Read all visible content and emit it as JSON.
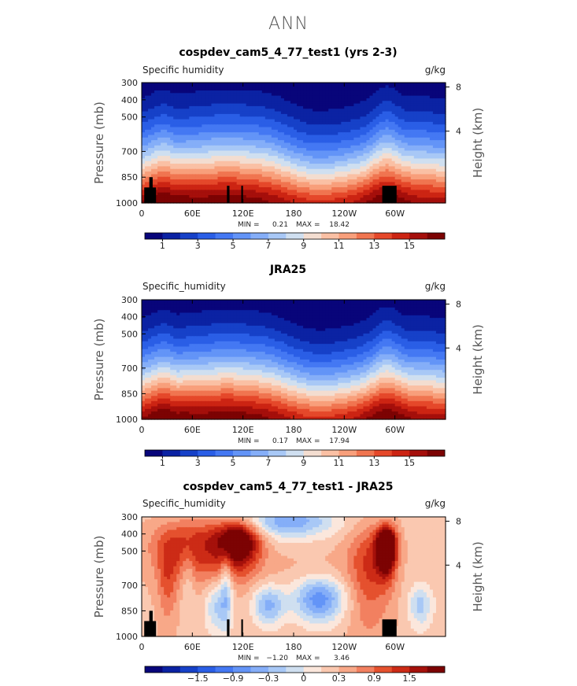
{
  "super_title": "ANN",
  "colors": {
    "abs_scale": [
      "#08057a",
      "#0b22a3",
      "#1641c8",
      "#2a5ee6",
      "#4478f3",
      "#6394f7",
      "#85aef8",
      "#a8c8f6",
      "#cfdff0",
      "#f3ddd0",
      "#fac0a4",
      "#f89f7b",
      "#f07550",
      "#e5482a",
      "#cc2413",
      "#a50f0b",
      "#7c0303"
    ],
    "diff_scale": [
      "#08057a",
      "#0b22a3",
      "#1641c8",
      "#2a5ee6",
      "#4478f3",
      "#6394f7",
      "#85aef8",
      "#a8c8f6",
      "#cfdff0",
      "#fbe7dc",
      "#fac8b0",
      "#f8a888",
      "#f28060",
      "#e5512e",
      "#cc2b16",
      "#a5110b",
      "#7c0303"
    ],
    "topography": "#000000"
  },
  "chart_data": [
    {
      "type": "heatmap",
      "title": "cospdev_cam5_4_77_test1 (yrs 2-3)",
      "variable_label": "Specific humidity",
      "units": "g/kg",
      "ylabel": "Pressure (mb)",
      "y2label": "Height (km)",
      "x_ticks": [
        "0",
        "60E",
        "120E",
        "180",
        "120W",
        "60W"
      ],
      "y_ticks": [
        "300",
        "400",
        "500",
        "700",
        "850",
        "1000"
      ],
      "y2_ticks": [
        "8",
        "4"
      ],
      "stats": {
        "min_label": "MIN =",
        "min": "0.21",
        "max_label": "MAX =",
        "max": "18.42"
      },
      "colorbar_labels": [
        "1",
        "3",
        "5",
        "7",
        "9",
        "11",
        "13",
        "15"
      ],
      "field": "abs_model",
      "topography": true
    },
    {
      "type": "heatmap",
      "title": "JRA25",
      "variable_label": "Specific_humidity",
      "units": "g/kg",
      "ylabel": "Pressure (mb)",
      "y2label": "Height (km)",
      "x_ticks": [
        "0",
        "60E",
        "120E",
        "180",
        "120W",
        "60W"
      ],
      "y_ticks": [
        "300",
        "400",
        "500",
        "700",
        "850",
        "1000"
      ],
      "y2_ticks": [
        "8",
        "4"
      ],
      "stats": {
        "min_label": "MIN =",
        "min": "0.17",
        "max_label": "MAX =",
        "max": "17.94"
      },
      "colorbar_labels": [
        "1",
        "3",
        "5",
        "7",
        "9",
        "11",
        "13",
        "15"
      ],
      "field": "abs_obs",
      "topography": false
    },
    {
      "type": "heatmap",
      "title": "cospdev_cam5_4_77_test1 - JRA25",
      "variable_label": "Specific_humidity",
      "units": "g/kg",
      "ylabel": "Pressure (mb)",
      "y2label": "Height (km)",
      "x_ticks": [
        "0",
        "60E",
        "120E",
        "180",
        "120W",
        "60W"
      ],
      "y_ticks": [
        "300",
        "400",
        "500",
        "700",
        "850",
        "1000"
      ],
      "y2_ticks": [
        "8",
        "4"
      ],
      "stats": {
        "min_label": "MIN =",
        "min": "−1.20",
        "max_label": "MAX =",
        "max": "3.46"
      },
      "colorbar_labels": [
        "−1.5",
        "−0.9",
        "−0.3",
        "0",
        "0.3",
        "0.9",
        "1.5"
      ],
      "field": "diff",
      "topography": true
    }
  ]
}
